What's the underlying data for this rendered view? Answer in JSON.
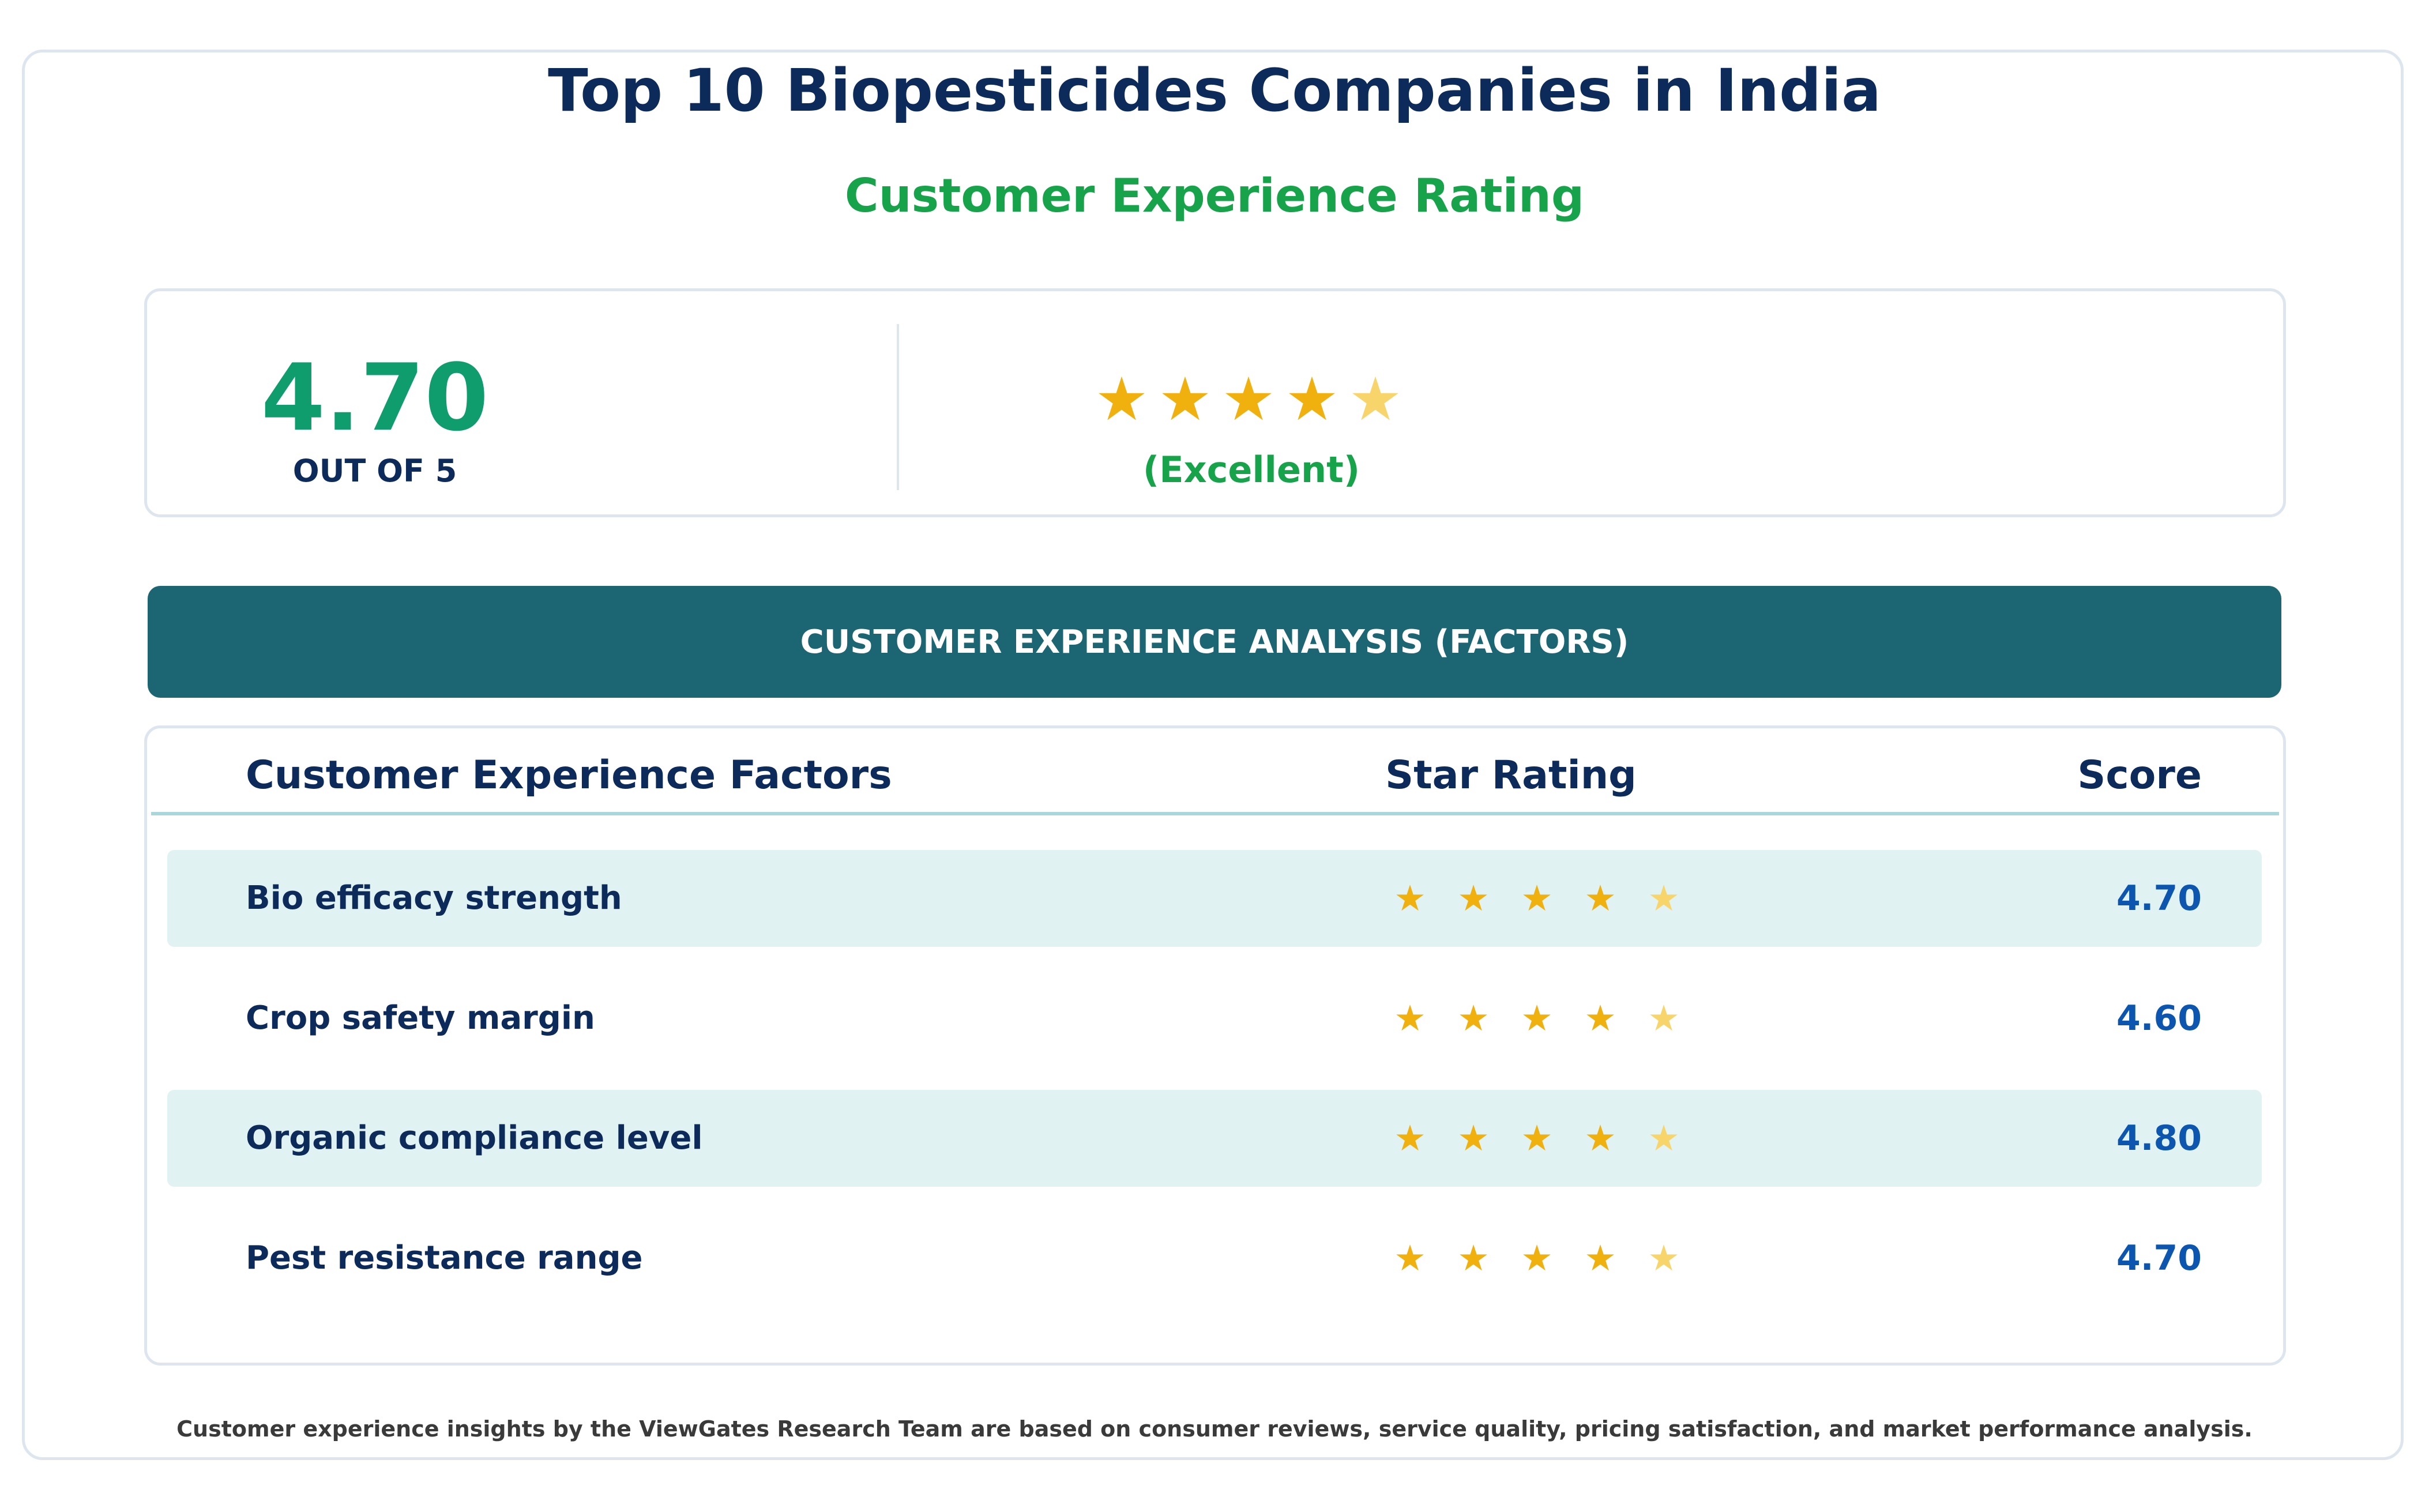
{
  "title": "Top 10 Biopesticides Companies in India",
  "subtitle": "Customer Experience Rating",
  "summary": {
    "score": "4.70",
    "out_of": "OUT OF 5",
    "rating": 4.7,
    "label": "(Excellent)"
  },
  "banner": "CUSTOMER EXPERIENCE ANALYSIS (FACTORS)",
  "table": {
    "headers": {
      "factor": "Customer Experience Factors",
      "stars": "Star Rating",
      "score": "Score"
    },
    "rows": [
      {
        "factor": "Bio efficacy strength",
        "score": "4.70",
        "rating": 4.7
      },
      {
        "factor": "Crop safety margin",
        "score": "4.60",
        "rating": 4.6
      },
      {
        "factor": "Organic compliance level",
        "score": "4.80",
        "rating": 4.8
      },
      {
        "factor": "Pest resistance range",
        "score": "4.70",
        "rating": 4.7
      }
    ]
  },
  "footer": "Customer experience insights by the ViewGates Research Team are based on consumer reviews, service quality, pricing satisfaction, and market performance analysis.",
  "colors": {
    "title": "#0c2a5a",
    "accent_green": "#16a34a",
    "score_green": "#0f9d6e",
    "banner": "#1c6674",
    "star": "#f0b00e",
    "star_partial": "#f8d56a",
    "score_blue": "#0d56b0",
    "row_shade": "#e0f2f1"
  },
  "icons": {
    "star": "star-icon",
    "partial_star": "half-star-icon"
  }
}
